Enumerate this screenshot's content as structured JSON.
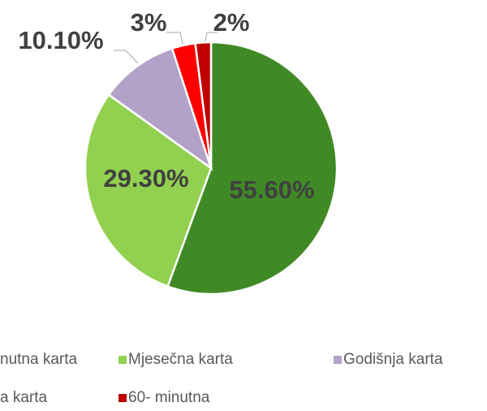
{
  "chart_data": {
    "type": "pie",
    "categories": [
      "nutna karta",
      "Mjesečna karta",
      "Godišnja karta",
      "a karta",
      "60- minutna"
    ],
    "values": [
      55.6,
      29.3,
      10.1,
      3,
      2
    ],
    "value_labels": [
      "55.60%",
      "29.30%",
      "10.10%",
      "3%",
      "2%"
    ],
    "colors": [
      "#3f8a25",
      "#92d050",
      "#b3a2c7",
      "#ff0000",
      "#c00000"
    ],
    "legend": "bottom"
  }
}
